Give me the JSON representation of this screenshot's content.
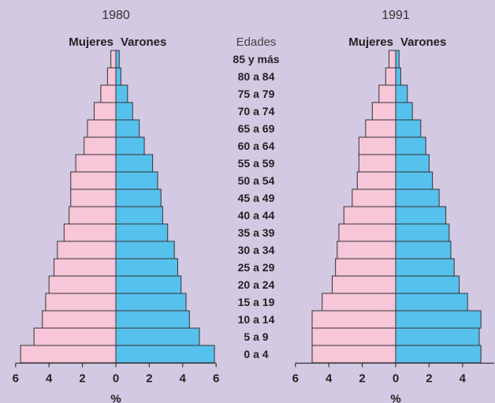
{
  "chart_data": {
    "type": "bar",
    "subtype": "population-pyramid",
    "age_header": "Edades",
    "age_groups": [
      "85 y más",
      "80 a 84",
      "75 a 79",
      "70 a 74",
      "65 a 69",
      "60 a 64",
      "55 a 59",
      "50 a 54",
      "45 a 49",
      "40 a 44",
      "35 a 39",
      "30 a 34",
      "25 a 29",
      "20 a 24",
      "15 a 19",
      "10 a 14",
      "5 a 9",
      "0 a 4"
    ],
    "xlabel": "%",
    "xlim": [
      -6,
      6
    ],
    "x_ticks": [
      "6",
      "4",
      "2",
      "0",
      "2",
      "4",
      "6"
    ],
    "grid": false,
    "colors": {
      "mujeres": "#f7c6d8",
      "varones": "#57c1ee",
      "outline": "#333333",
      "background": "#d3c9e2"
    },
    "panels": [
      {
        "title": "1980",
        "series": [
          {
            "name": "Mujeres",
            "values": [
              0.3,
              0.5,
              0.9,
              1.3,
              1.7,
              1.9,
              2.4,
              2.7,
              2.7,
              2.8,
              3.1,
              3.5,
              3.7,
              4.0,
              4.2,
              4.4,
              4.9,
              5.7
            ]
          },
          {
            "name": "Varones",
            "values": [
              0.2,
              0.3,
              0.7,
              1.0,
              1.4,
              1.7,
              2.2,
              2.5,
              2.7,
              2.8,
              3.1,
              3.5,
              3.7,
              3.9,
              4.2,
              4.4,
              5.0,
              5.9
            ]
          }
        ]
      },
      {
        "title": "1991",
        "series": [
          {
            "name": "Mujeres",
            "values": [
              0.4,
              0.6,
              1.0,
              1.4,
              1.8,
              2.2,
              2.2,
              2.3,
              2.6,
              3.1,
              3.4,
              3.5,
              3.6,
              3.8,
              4.4,
              5.0,
              5.0,
              5.0
            ]
          },
          {
            "name": "Varones",
            "values": [
              0.2,
              0.3,
              0.7,
              1.0,
              1.5,
              1.8,
              2.0,
              2.2,
              2.6,
              3.0,
              3.2,
              3.3,
              3.5,
              3.8,
              4.3,
              5.1,
              5.0,
              5.1
            ]
          }
        ]
      }
    ]
  }
}
